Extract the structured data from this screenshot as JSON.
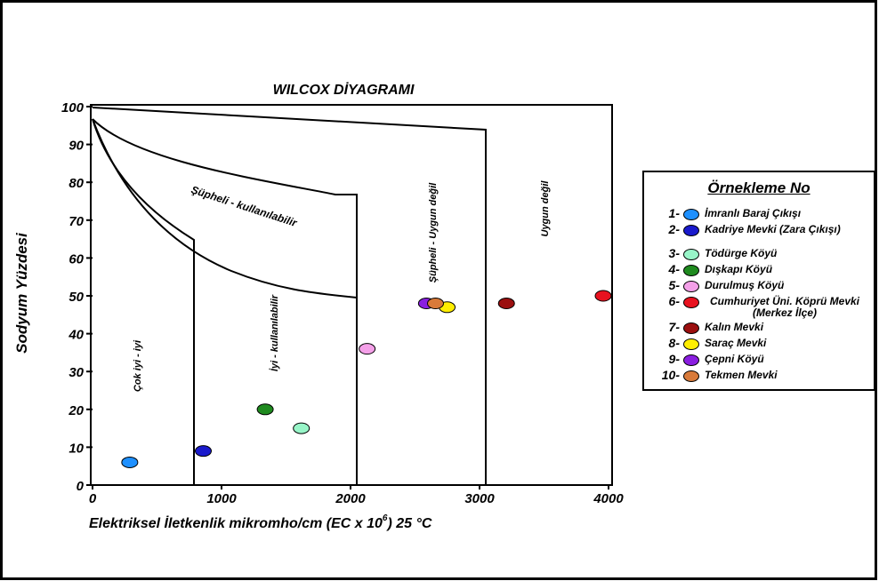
{
  "chart_data": {
    "type": "scatter",
    "title": "WILCOX DİYAGRAMI",
    "xlabel": "Elektriksel İletkenlik mikromho/cm (EC x 10",
    "xlabel_sup": "6",
    "xlabel_tail": ") 25 °C",
    "ylabel": "Sodyum Yüzdesi",
    "xlim": [
      0,
      4000
    ],
    "ylim": [
      0,
      100
    ],
    "xticks": [
      "0",
      "1000",
      "2000",
      "3000",
      "4000"
    ],
    "yticks": [
      "0",
      "10",
      "20",
      "30",
      "40",
      "50",
      "60",
      "70",
      "80",
      "90",
      "100"
    ],
    "region_labels": [
      "Çok iyi - iyi",
      "İyi - kullanılabilir",
      "Şüpheli - kullanılabilir",
      "Şüpheli - Uygun değil",
      "Uygun değil"
    ],
    "series": [
      {
        "name": "İmranlı Baraj Çıkışı",
        "color": "#1e90ff",
        "points": [
          [
            330,
            6
          ]
        ]
      },
      {
        "name": "Kadriye Mevki (Zara Çıkışı)",
        "color": "#1a1acc",
        "points": [
          [
            900,
            9
          ]
        ]
      },
      {
        "name": "Tödürge Köyü",
        "color": "#98f5c8",
        "points": [
          [
            1660,
            15
          ]
        ]
      },
      {
        "name": "Dışkapı Köyü",
        "color": "#1f8a1f",
        "points": [
          [
            1380,
            20
          ]
        ]
      },
      {
        "name": "Durulmuş Köyü",
        "color": "#f4a0e8",
        "points": [
          [
            2170,
            36
          ]
        ]
      },
      {
        "name": "Cumhuriyet Üni. Köprü Mevki (Merkez İlçe)",
        "color": "#e8121f",
        "points": [
          [
            4000,
            50
          ]
        ]
      },
      {
        "name": "Kalın Mevki",
        "color": "#9b0f0f",
        "points": [
          [
            3250,
            48
          ]
        ]
      },
      {
        "name": "Saraç Mevki",
        "color": "#ffee00",
        "points": [
          [
            2790,
            47
          ]
        ]
      },
      {
        "name": "Çepni Köyü",
        "color": "#8a1ee0",
        "points": [
          [
            2630,
            48
          ]
        ]
      },
      {
        "name": "Tekmen Mevki",
        "color": "#d87a3a",
        "points": [
          [
            2700,
            48
          ]
        ]
      }
    ]
  },
  "legend": {
    "title": "Örnekleme No",
    "items": [
      {
        "num": "1-",
        "label": "İmranlı Baraj Çıkışı",
        "color": "#1e90ff"
      },
      {
        "num": "2-",
        "label": "Kadriye Mevki (Zara Çıkışı)",
        "color": "#1a1acc"
      },
      {
        "num": "3-",
        "label": "Tödürge Köyü",
        "color": "#98f5c8"
      },
      {
        "num": "4-",
        "label": "Dışkapı Köyü",
        "color": "#1f8a1f"
      },
      {
        "num": "5-",
        "label": "Durulmuş Köyü",
        "color": "#f4a0e8"
      },
      {
        "num": "6-",
        "label": "Cumhuriyet Üni. Köprü Mevki (Merkez İlçe)",
        "color": "#e8121f"
      },
      {
        "num": "7-",
        "label": "Kalın Mevki",
        "color": "#9b0f0f"
      },
      {
        "num": "8-",
        "label": "Saraç Mevki",
        "color": "#ffee00"
      },
      {
        "num": "9-",
        "label": "Çepni Köyü",
        "color": "#8a1ee0"
      },
      {
        "num": "10-",
        "label": "Tekmen Mevki",
        "color": "#d87a3a"
      }
    ]
  }
}
